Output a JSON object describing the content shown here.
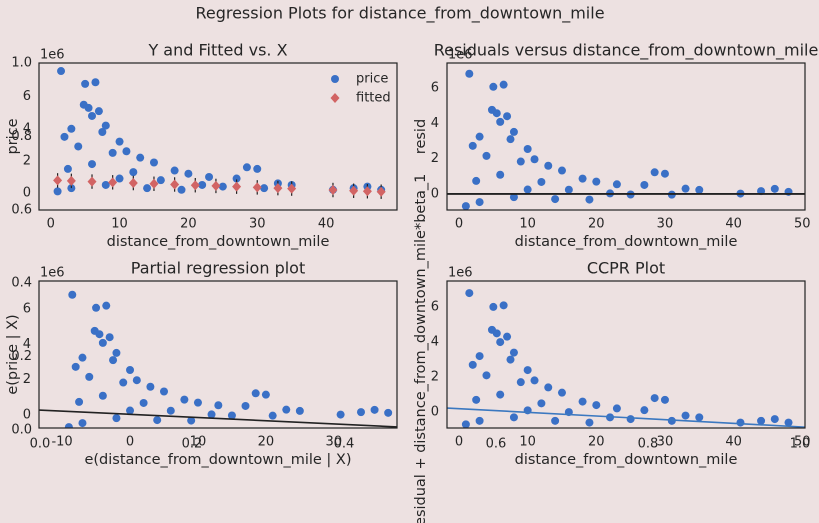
{
  "figure_title": "Regression Plots for distance_from_downtown_mile",
  "chart_data": [
    {
      "type": "blank",
      "xlim": [
        0,
        1
      ],
      "ylim": [
        0,
        1
      ],
      "xticks": [
        {
          "value": 0,
          "label": "0.0"
        },
        {
          "value": 0.2,
          "label": "0.2"
        },
        {
          "value": 0.4,
          "label": "0.4"
        },
        {
          "value": 0.6,
          "label": "0.6"
        },
        {
          "value": 0.8,
          "label": "0.8"
        },
        {
          "value": 1,
          "label": "1.0"
        }
      ],
      "yticks": [
        {
          "value": 0,
          "label": "0.0"
        },
        {
          "value": 0.2,
          "label": "0.2"
        },
        {
          "value": 0.4,
          "label": "0.4"
        },
        {
          "value": 0.6,
          "label": "0.6"
        },
        {
          "value": 0.8,
          "label": "0.8"
        },
        {
          "value": 1,
          "label": "1.0"
        }
      ]
    },
    {
      "type": "scatter",
      "title": "Y and Fitted vs. X",
      "x_label": "distance_from_downtown_mile",
      "y_label": "price",
      "offset_label": "1e6",
      "xlim": [
        -1.7,
        50.3
      ],
      "ylim": [
        -1.06,
        8.1
      ],
      "xticks": [
        0,
        10,
        20,
        30,
        40
      ],
      "yticks": [
        0,
        2,
        4,
        6
      ],
      "legend": "upper right",
      "series": [
        {
          "name": "price",
          "color": "#3a70c6",
          "marker": "circle",
          "x": [
            1.5,
            5,
            6.5,
            4.8,
            5.5,
            7,
            6,
            2,
            3,
            8,
            10,
            7.5,
            11,
            13,
            4,
            9,
            15,
            18,
            20,
            23,
            27,
            28.5,
            30,
            33,
            35,
            2.5,
            6,
            12,
            16,
            22,
            25,
            31,
            41,
            44,
            46,
            48,
            3,
            8,
            14,
            19,
            1,
            10
          ],
          "values": [
            7.6,
            6.8,
            6.9,
            5.5,
            5.3,
            5.1,
            4.8,
            3.5,
            4.0,
            4.2,
            3.2,
            3.8,
            2.6,
            2.2,
            2.9,
            2.5,
            1.9,
            1.4,
            1.2,
            1.0,
            0.9,
            1.6,
            1.5,
            0.6,
            0.5,
            1.5,
            1.8,
            1.3,
            0.8,
            0.5,
            0.4,
            0.3,
            0.2,
            0.3,
            0.4,
            0.2,
            0.3,
            0.5,
            0.3,
            0.2,
            0.1,
            0.9
          ]
        },
        {
          "name": "fitted",
          "color": "#d26464",
          "marker": "diamond",
          "error_color": "#222222",
          "x": [
            1,
            3,
            6,
            9,
            12,
            15,
            18,
            21,
            24,
            27,
            30,
            33,
            35,
            41,
            44,
            46,
            48
          ],
          "values": [
            0.785,
            0.755,
            0.71,
            0.665,
            0.62,
            0.575,
            0.53,
            0.485,
            0.44,
            0.395,
            0.35,
            0.305,
            0.275,
            0.185,
            0.14,
            0.11,
            0.08
          ],
          "error": [
            0.45,
            0.45,
            0.45,
            0.45,
            0.45,
            0.45,
            0.45,
            0.45,
            0.45,
            0.45,
            0.45,
            0.45,
            0.45,
            0.45,
            0.45,
            0.45,
            0.45
          ]
        }
      ]
    },
    {
      "type": "scatter",
      "title": "Residuals versus distance_from_downtown_mile",
      "x_label": "distance_from_downtown_mile",
      "y_label": "resid",
      "offset_label": "1e6",
      "xlim": [
        -1.75,
        50.4
      ],
      "ylim": [
        -0.91,
        7.43
      ],
      "xticks": [
        0,
        10,
        20,
        30,
        40,
        50
      ],
      "yticks": [
        0,
        2,
        4,
        6
      ],
      "hline": {
        "value": 0,
        "color": "#222222"
      },
      "series": [
        {
          "color": "#3a70c6",
          "marker": "circle",
          "x": [
            1.5,
            5,
            6.5,
            4.8,
            5.5,
            7,
            6,
            2,
            3,
            8,
            10,
            7.5,
            11,
            13,
            4,
            9,
            15,
            18,
            20,
            23,
            27,
            28.5,
            30,
            33,
            35,
            2.5,
            6,
            12,
            16,
            22,
            25,
            31,
            41,
            44,
            46,
            48,
            3,
            8,
            14,
            19,
            1,
            10
          ],
          "values": [
            6.82,
            6.08,
            6.2,
            4.77,
            4.58,
            4.41,
            4.09,
            2.73,
            3.25,
            3.52,
            2.55,
            3.11,
            1.97,
            1.6,
            2.16,
            1.84,
            1.33,
            0.87,
            0.7,
            0.55,
            0.51,
            1.23,
            1.15,
            0.3,
            0.23,
            0.74,
            1.09,
            0.68,
            0.24,
            0.03,
            -0.03,
            -0.04,
            0.02,
            0.16,
            0.29,
            0.12,
            -0.46,
            -0.18,
            -0.29,
            -0.32,
            -0.69,
            0.25
          ]
        }
      ]
    },
    {
      "type": "scatter",
      "title": "Partial regression plot",
      "x_label": "e(distance_from_downtown_mile | X)",
      "y_label": "e(price | X)",
      "offset_label": "1e6",
      "xlim": [
        -13.4,
        39.3
      ],
      "ylim": [
        -0.74,
        7.6
      ],
      "xticks": [
        -10,
        0,
        10,
        20,
        30
      ],
      "yticks": [
        0,
        2,
        4,
        6
      ],
      "fit_line": {
        "color": "#222222",
        "x": [
          -13.4,
          39.3
        ],
        "values": [
          0.28,
          -0.68
        ]
      },
      "series": [
        {
          "color": "#3a70c6",
          "marker": "circle",
          "x": [
            -8.5,
            -5,
            -3.5,
            -5.2,
            -4.5,
            -3,
            -4,
            -8,
            -7,
            -2,
            0,
            -2.5,
            1,
            3,
            -6,
            -1,
            5,
            8,
            10,
            13,
            17,
            18.5,
            20,
            23,
            25,
            -7.5,
            -4,
            2,
            6,
            12,
            15,
            21,
            31,
            34,
            36,
            38,
            -7,
            -2,
            4,
            9,
            -9,
            0
          ],
          "values": [
            6.82,
            6.08,
            6.2,
            4.77,
            4.58,
            4.41,
            4.09,
            2.73,
            3.25,
            3.52,
            2.55,
            3.11,
            1.97,
            1.6,
            2.16,
            1.84,
            1.33,
            0.87,
            0.7,
            0.55,
            0.51,
            1.23,
            1.15,
            0.3,
            0.23,
            0.74,
            1.09,
            0.68,
            0.24,
            0.03,
            -0.03,
            -0.04,
            0.02,
            0.16,
            0.29,
            0.12,
            -0.46,
            -0.18,
            -0.29,
            -0.32,
            -0.69,
            0.25
          ]
        }
      ]
    },
    {
      "type": "scatter",
      "title": "CCPR Plot",
      "x_label": "distance_from_downtown_mile",
      "y_label": "Residual + distance_from_downtown_mile*beta_1",
      "offset_label": "1e6",
      "xlim": [
        -1.75,
        50.4
      ],
      "ylim": [
        -0.91,
        7.49
      ],
      "xticks": [
        0,
        10,
        20,
        30,
        40,
        50
      ],
      "yticks": [
        0,
        2,
        4,
        6
      ],
      "fit_line": {
        "color": "#3b78c0",
        "x": [
          -1.75,
          50.4
        ],
        "values": [
          0.23,
          -0.86
        ]
      },
      "series": [
        {
          "color": "#3a70c6",
          "marker": "circle",
          "x": [
            1.5,
            5,
            6.5,
            4.8,
            5.5,
            7,
            6,
            2,
            3,
            8,
            10,
            7.5,
            11,
            13,
            4,
            9,
            15,
            18,
            20,
            23,
            27,
            28.5,
            30,
            33,
            35,
            2.5,
            6,
            12,
            16,
            22,
            25,
            31,
            41,
            44,
            46,
            48,
            3,
            8,
            14,
            19,
            1,
            10
          ],
          "values": [
            6.8,
            6.01,
            6.1,
            4.7,
            4.5,
            4.31,
            4.0,
            2.7,
            3.2,
            3.4,
            2.4,
            3.0,
            1.81,
            1.41,
            2.1,
            1.71,
            1.11,
            0.6,
            0.4,
            0.21,
            0.11,
            0.8,
            0.7,
            -0.2,
            -0.3,
            0.7,
            1.0,
            0.5,
            0.0,
            -0.3,
            -0.4,
            -0.5,
            -0.6,
            -0.5,
            -0.4,
            -0.6,
            -0.5,
            -0.3,
            -0.5,
            -0.6,
            -0.7,
            0.1
          ]
        }
      ]
    }
  ]
}
